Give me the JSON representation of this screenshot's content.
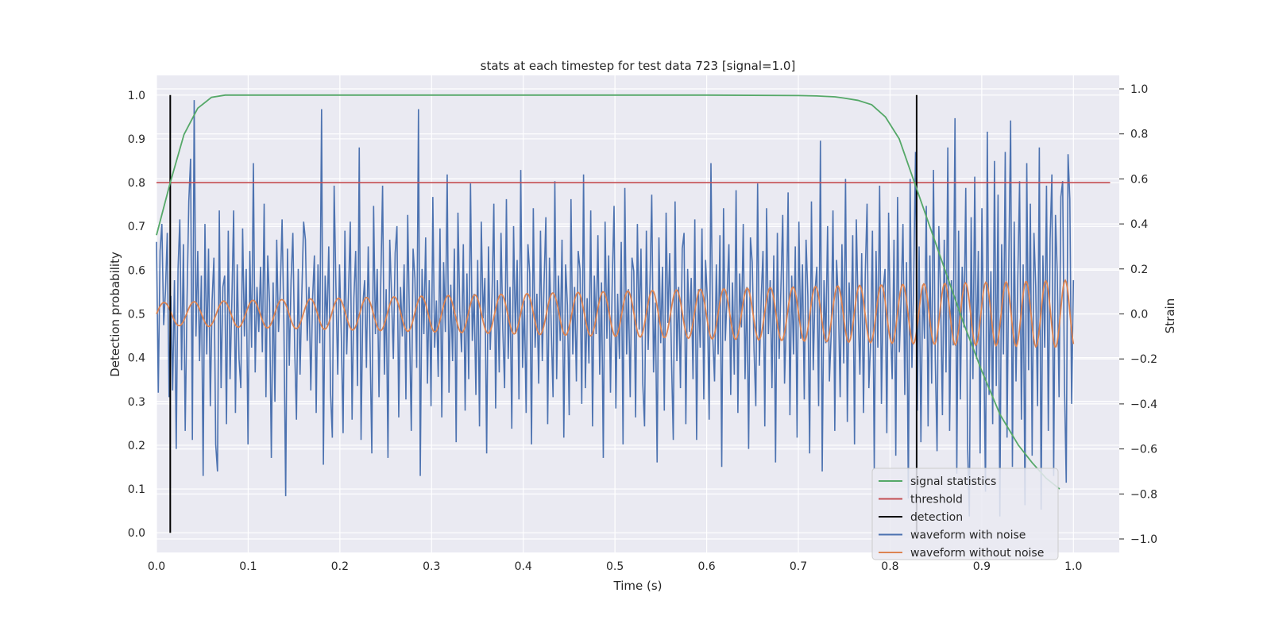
{
  "chart_data": {
    "type": "line",
    "title": "stats at each timestep for test data 723 [signal=1.0]",
    "xlabel": "Time (s)",
    "ylabel": "Detection probability",
    "y2label": "Strain",
    "xlim": [
      0.0,
      1.05
    ],
    "ylim": [
      -0.045,
      1.045
    ],
    "y2lim": [
      -1.06,
      1.06
    ],
    "xticks": [
      "0.0",
      "0.1",
      "0.2",
      "0.3",
      "0.4",
      "0.5",
      "0.6",
      "0.7",
      "0.8",
      "0.9",
      "1.0"
    ],
    "yticks": [
      "0.0",
      "0.1",
      "0.2",
      "0.3",
      "0.4",
      "0.5",
      "0.6",
      "0.7",
      "0.8",
      "0.9",
      "1.0"
    ],
    "y2ticks": [
      "−1.0",
      "−0.8",
      "−0.6",
      "−0.4",
      "−0.2",
      "0.0",
      "0.2",
      "0.4",
      "0.6",
      "0.8",
      "1.0"
    ],
    "grid": true,
    "legend_position": "lower-right",
    "colors": {
      "background": "#eaeaf2",
      "grid": "#ffffff",
      "signal_statistics": "#55a868",
      "threshold": "#c44e52",
      "detection": "#000000",
      "waveform_with_noise": "#4c72b0",
      "waveform_without_noise": "#dd8452"
    },
    "legend": [
      "signal statistics",
      "threshold",
      "detection",
      "waveform with noise",
      "waveform without noise"
    ],
    "series": [
      {
        "name": "signal statistics",
        "axis": "left",
        "x": [
          0.0,
          0.015,
          0.03,
          0.045,
          0.06,
          0.075,
          0.1,
          0.2,
          0.3,
          0.4,
          0.5,
          0.6,
          0.7,
          0.72,
          0.74,
          0.75,
          0.765,
          0.78,
          0.795,
          0.81,
          0.825,
          0.84,
          0.86,
          0.88,
          0.9,
          0.92,
          0.94,
          0.955,
          0.97,
          0.985
        ],
        "y": [
          0.68,
          0.8,
          0.91,
          0.97,
          0.995,
          1.0,
          1.0,
          1.0,
          1.0,
          1.0,
          1.0,
          1.0,
          0.999,
          0.998,
          0.996,
          0.993,
          0.988,
          0.978,
          0.95,
          0.9,
          0.81,
          0.72,
          0.6,
          0.48,
          0.37,
          0.27,
          0.2,
          0.16,
          0.125,
          0.1
        ]
      },
      {
        "name": "threshold",
        "axis": "left",
        "x": [
          0.0,
          1.04
        ],
        "y": [
          0.8,
          0.8
        ]
      },
      {
        "name": "detection",
        "axis": "left",
        "segments": [
          {
            "x": 0.015,
            "y": [
              0.0,
              1.0
            ]
          },
          {
            "x": 0.829,
            "y": [
              0.0,
              1.0
            ]
          }
        ]
      },
      {
        "name": "waveform with noise",
        "axis": "right",
        "x_start": 0.0,
        "x_end": 1.0,
        "y": [
          0.32,
          -0.35,
          0.28,
          0.4,
          -0.05,
          0.1,
          0.36,
          -0.37,
          0.08,
          -0.34,
          0.15,
          -0.6,
          0.2,
          0.42,
          -0.25,
          0.31,
          -0.52,
          0.05,
          0.5,
          0.69,
          -0.56,
          0.95,
          -0.1,
          0.28,
          -0.21,
          0.17,
          -0.72,
          0.4,
          -0.18,
          0.29,
          -0.41,
          0.06,
          0.25,
          -0.58,
          -0.7,
          0.46,
          -0.33,
          0.12,
          0.17,
          -0.49,
          0.37,
          -0.29,
          0.05,
          0.46,
          -0.44,
          0.22,
          -0.2,
          -0.33,
          0.38,
          -0.1,
          0.2,
          -0.58,
          0.28,
          -0.15,
          0.67,
          -0.26,
          0.12,
          -0.08,
          0.21,
          -0.17,
          0.49,
          -0.37,
          0.26,
          0.05,
          -0.64,
          0.14,
          -0.39,
          0.33,
          -0.08,
          0.11,
          0.42,
          -0.05,
          -0.81,
          0.29,
          -0.23,
          0.15,
          0.36,
          -0.15,
          -0.47,
          0.2,
          -0.27,
          0.09,
          0.41,
          0.33,
          -0.12,
          0.12,
          -0.34,
          0.07,
          0.26,
          -0.44,
          0.22,
          -0.13,
          0.91,
          -0.67,
          0.17,
          -0.05,
          0.3,
          -0.35,
          -0.55,
          0.57,
          0.12,
          -0.27,
          0.22,
          -0.1,
          -0.53,
          0.37,
          -0.18,
          0.09,
          0.41,
          -0.47,
          0.07,
          0.28,
          -0.32,
          0.74,
          -0.56,
          0.04,
          0.15,
          -0.24,
          0.3,
          -0.13,
          -0.62,
          0.48,
          -0.09,
          0.2,
          -0.37,
          0.14,
          0.57,
          -0.27,
          0.11,
          -0.64,
          0.33,
          0.08,
          -0.2,
          0.27,
          0.39,
          -0.46,
          0.12,
          -0.1,
          0.22,
          -0.38,
          0.44,
          -0.05,
          -0.52,
          0.29,
          0.16,
          -0.24,
          0.91,
          -0.72,
          0.2,
          -0.09,
          0.34,
          -0.31,
          0.15,
          -0.41,
          0.52,
          -0.15,
          0.06,
          -0.28,
          0.38,
          -0.46,
          0.23,
          -0.08,
          0.62,
          -0.35,
          0.13,
          -0.21,
          0.29,
          -0.57,
          0.45,
          0.02,
          -0.17,
          0.31,
          -0.43,
          0.18,
          -0.29,
          0.58,
          -0.12,
          0.09,
          -0.36,
          0.24,
          -0.5,
          0.41,
          -0.02,
          0.16,
          -0.62,
          0.3,
          -0.16,
          0.08,
          0.49,
          -0.42,
          0.15,
          -0.26,
          0.36,
          -0.07,
          -0.33,
          0.51,
          -0.2,
          0.12,
          -0.51,
          0.39,
          -0.09,
          0.24,
          -0.38,
          0.64,
          -0.24,
          0.06,
          -0.44,
          0.31,
          0.18,
          -0.58,
          0.47,
          -0.15,
          0.09,
          -0.31,
          0.37,
          -0.21,
          0.14,
          0.43,
          -0.49,
          0.25,
          -0.06,
          -0.37,
          0.59,
          -0.29,
          0.17,
          -0.12,
          0.33,
          -0.55,
          0.22,
          0.04,
          -0.45,
          0.51,
          -0.18,
          0.12,
          -0.3,
          0.28,
          0.2,
          -0.4,
          0.62,
          -0.33,
          0.07,
          -0.22,
          0.46,
          -0.5,
          0.17,
          -0.09,
          0.35,
          -0.27,
          0.14,
          -0.64,
          0.41,
          -0.11,
          0.26,
          -0.35,
          0.15,
          0.48,
          -0.42,
          0.09,
          -0.2,
          0.32,
          -0.58,
          0.56,
          -0.18,
          0.11,
          -0.37,
          0.25,
          0.19,
          -0.46,
          0.4,
          -0.07,
          0.29,
          -0.31,
          -0.5,
          0.37,
          -0.16,
          0.13,
          0.53,
          -0.26,
          0.05,
          -0.66,
          0.34,
          -0.13,
          0.21,
          -0.43,
          0.45,
          -0.04,
          0.27,
          -0.2,
          -0.56,
          0.5,
          -0.21,
          0.12,
          -0.33,
          0.29,
          0.36,
          -0.49,
          0.2,
          -0.08,
          0.16,
          -0.29,
          0.42,
          -0.56,
          0.11,
          -0.15,
          0.38,
          -0.38,
          0.24,
          0.06,
          -0.47,
          0.67,
          -0.1,
          -0.3,
          0.22,
          -0.18,
          0.35,
          -0.68,
          0.47,
          -0.12,
          0.09,
          0.31,
          -0.36,
          0.14,
          -0.27,
          0.55,
          -0.44,
          0.18,
          -0.06,
          0.4,
          -0.29,
          0.12,
          -0.6,
          0.34,
          0.23,
          -0.16,
          -0.41,
          0.58,
          -0.23,
          0.07,
          0.28,
          -0.5,
          0.47,
          -0.09,
          0.15,
          -0.33,
          0.26,
          -0.66,
          0.36,
          -0.2,
          0.12,
          0.44,
          -0.31,
          -0.03,
          0.54,
          -0.45,
          0.17,
          -0.18,
          0.3,
          -0.55,
          0.41,
          -0.11,
          0.22,
          -0.38,
          0.33,
          0.08,
          -0.62,
          0.5,
          -0.25,
          0.1,
          0.21,
          -0.41,
          0.77,
          -0.7,
          0.15,
          -0.13,
          0.39,
          -0.3,
          -0.09,
          0.46,
          -0.52,
          0.24,
          0.06,
          -0.37,
          0.31,
          -0.22,
          0.6,
          -0.48,
          0.14,
          -0.1,
          0.35,
          -0.58,
          0.42,
          0.02,
          -0.27,
          0.27,
          -0.44,
          0.18,
          0.49,
          -0.33,
          -0.12,
          0.37,
          -0.69,
          0.28,
          -0.15,
          0.57,
          -0.4,
          0.11,
          0.2,
          -0.53,
          0.45,
          -0.06,
          -0.29,
          0.33,
          -0.63,
          0.52,
          -0.17,
          0.08,
          0.4,
          -0.36,
          0.23,
          -0.82,
          0.6,
          -0.24,
          0.16,
          0.72,
          -0.43,
          0.3,
          -0.57,
          0.13,
          -0.11,
          0.48,
          -0.5,
          0.26,
          -0.31,
          0.64,
          -0.2,
          -0.61,
          0.39,
          0.07,
          -0.45,
          0.33,
          -0.26,
          0.74,
          -0.52,
          0.15,
          -0.14,
          0.87,
          -0.71,
          0.37,
          -0.38,
          0.21,
          -0.06,
          0.56,
          -0.58,
          -0.9,
          0.43,
          -0.29,
          0.61,
          -0.2,
          0.28,
          -0.62,
          0.47,
          -0.12,
          -0.79,
          0.81,
          -0.36,
          0.19,
          -0.49,
          0.68,
          -0.32,
          0.53,
          -0.9,
          0.31,
          -0.18,
          0.72,
          -0.55,
          0.24,
          0.86,
          -0.68,
          0.41,
          -0.3,
          0.16,
          0.59,
          -0.47,
          0.22,
          -0.85,
          0.67,
          -0.25,
          0.49,
          -0.63,
          0.36,
          0.12,
          -0.41,
          0.74,
          -0.87,
          0.26,
          -0.15,
          0.57,
          -0.52,
          0.33,
          0.62,
          -0.72,
          0.44,
          0.18,
          -0.37,
          0.52,
          0.59,
          -0.31,
          -0.75,
          0.71,
          0.51,
          -0.4,
          0.15
        ]
      },
      {
        "name": "waveform without noise",
        "axis": "right",
        "description_values": {
          "amplitude_start": 0.05,
          "amplitude_end": 0.15,
          "cycles_start_period_s": 0.033,
          "cycles_end_period_s": 0.021
        },
        "x_start": 0.0,
        "x_end": 1.0
      }
    ]
  }
}
